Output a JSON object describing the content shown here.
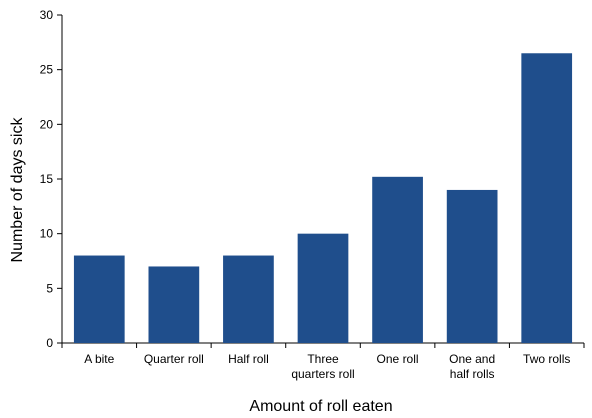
{
  "chart_data": {
    "type": "bar",
    "title": "",
    "xlabel": "Amount of roll eaten",
    "ylabel": "Number of days sick",
    "ylim": [
      0,
      30
    ],
    "yticks": [
      0,
      5,
      10,
      15,
      20,
      25,
      30
    ],
    "categories": [
      [
        "A bite"
      ],
      [
        "Quarter roll"
      ],
      [
        "Half roll"
      ],
      [
        "Three",
        "quarters roll"
      ],
      [
        "One roll"
      ],
      [
        "One and",
        "half rolls"
      ],
      [
        "Two rolls"
      ]
    ],
    "values": [
      8,
      7,
      8,
      10,
      15.2,
      14,
      26.5
    ],
    "bar_color": "#1f4e8c",
    "grid": false,
    "legend": "none"
  }
}
